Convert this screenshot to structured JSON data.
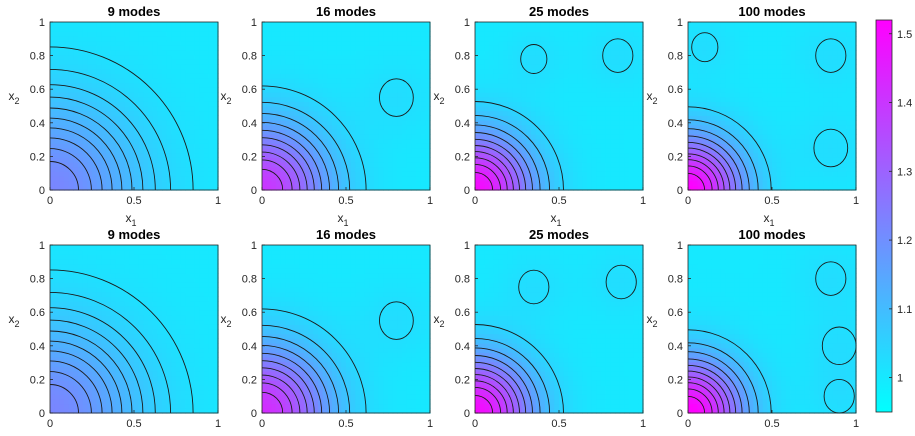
{
  "chart_data": {
    "type": "contour",
    "x_var": "x",
    "x_sub": "1",
    "y_var": "x",
    "y_sub": "2",
    "xlim": [
      0,
      1
    ],
    "ylim": [
      0,
      1
    ],
    "x_ticks": [
      "0",
      "0.5",
      "1"
    ],
    "y_ticks": [
      "0",
      "0.2",
      "0.4",
      "0.6",
      "0.8",
      "1"
    ],
    "panels": [
      {
        "title": "9 modes",
        "row": 1,
        "col": 1,
        "peak": 1.22,
        "spread": 0.55,
        "bumps": []
      },
      {
        "title": "16 modes",
        "row": 1,
        "col": 2,
        "peak": 1.4,
        "spread": 0.4,
        "bumps": [
          [
            0.8,
            0.55,
            0.05
          ]
        ]
      },
      {
        "title": "25 modes",
        "row": 1,
        "col": 3,
        "peak": 1.5,
        "spread": 0.34,
        "bumps": [
          [
            0.35,
            0.78,
            0.03
          ],
          [
            0.85,
            0.8,
            0.04
          ]
        ]
      },
      {
        "title": "100 modes",
        "row": 1,
        "col": 4,
        "peak": 1.52,
        "spread": 0.32,
        "bumps": [
          [
            0.85,
            0.8,
            0.04
          ],
          [
            0.85,
            0.25,
            0.05
          ],
          [
            0.1,
            0.85,
            0.03
          ]
        ]
      },
      {
        "title": "9 modes",
        "row": 2,
        "col": 1,
        "peak": 1.22,
        "spread": 0.55,
        "bumps": []
      },
      {
        "title": "16 modes",
        "row": 2,
        "col": 2,
        "peak": 1.42,
        "spread": 0.4,
        "bumps": [
          [
            0.8,
            0.55,
            0.05
          ]
        ]
      },
      {
        "title": "25 modes",
        "row": 2,
        "col": 3,
        "peak": 1.5,
        "spread": 0.34,
        "bumps": [
          [
            0.35,
            0.75,
            0.04
          ],
          [
            0.87,
            0.78,
            0.04
          ]
        ]
      },
      {
        "title": "100 modes",
        "row": 2,
        "col": 4,
        "peak": 1.53,
        "spread": 0.32,
        "bumps": [
          [
            0.85,
            0.8,
            0.04
          ],
          [
            0.9,
            0.4,
            0.05
          ],
          [
            0.9,
            0.1,
            0.04
          ]
        ]
      }
    ],
    "colorbar": {
      "min": 0.95,
      "max": 1.52,
      "ticks": [
        "1",
        "1.1",
        "1.2",
        "1.3",
        "1.4",
        "1.5"
      ],
      "colormap": "cool",
      "color_low": "#00ffff",
      "color_high": "#ff00ff"
    }
  }
}
